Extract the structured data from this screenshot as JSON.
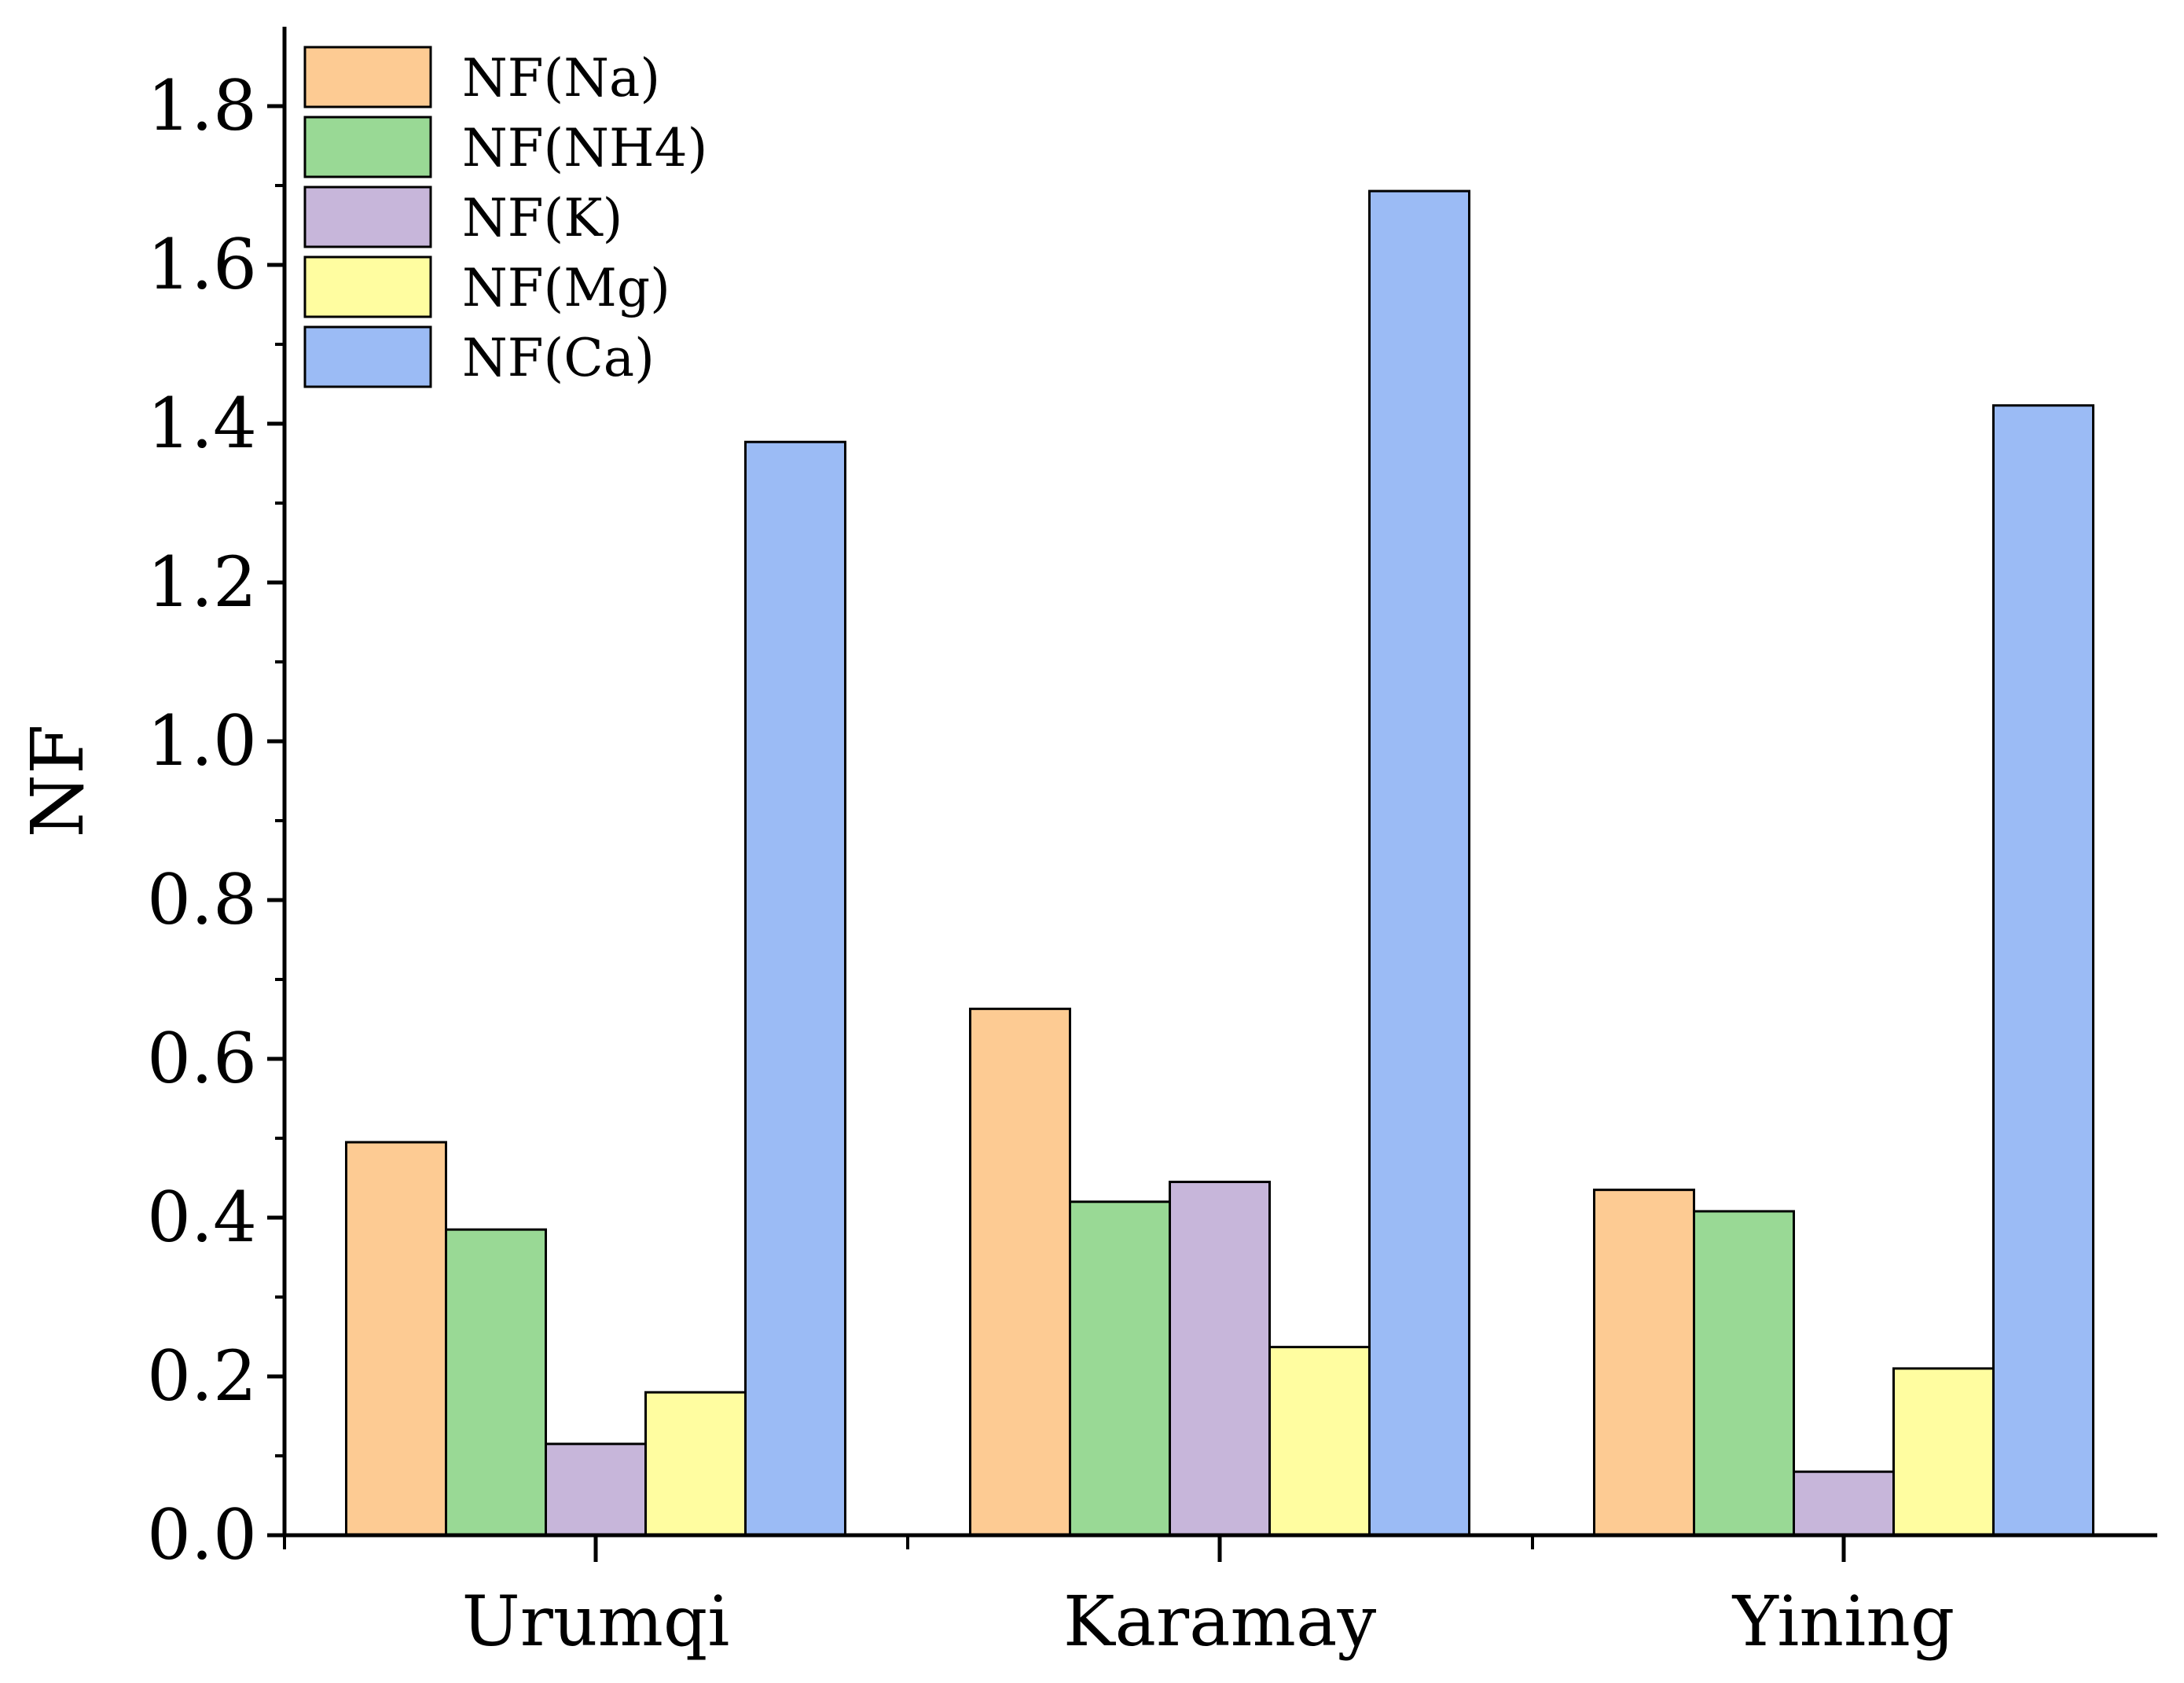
{
  "chart_data": {
    "type": "bar",
    "title": "",
    "xlabel": "",
    "ylabel": "NF",
    "ylim": [
      0,
      1.9
    ],
    "yticks": [
      "0.0",
      "0.2",
      "0.4",
      "0.6",
      "0.8",
      "1.0",
      "1.2",
      "1.4",
      "1.6",
      "1.8"
    ],
    "ytick_values": [
      0,
      0.2,
      0.4,
      0.6,
      0.8,
      1.0,
      1.2,
      1.4,
      1.6,
      1.8
    ],
    "categories": [
      "Urumqi",
      "Karamay",
      "Yining"
    ],
    "legend_position": "top-left",
    "grid": false,
    "series": [
      {
        "name": "NF(Na)",
        "color": "#FDCB93",
        "values": [
          0.495,
          0.663,
          0.435
        ]
      },
      {
        "name": "NF(NH4)",
        "color": "#99D995",
        "values": [
          0.385,
          0.42,
          0.408
        ]
      },
      {
        "name": "NF(K)",
        "color": "#C7B6DA",
        "values": [
          0.115,
          0.445,
          0.08
        ]
      },
      {
        "name": "NF(Mg)",
        "color": "#FFFDA0",
        "values": [
          0.18,
          0.237,
          0.21
        ]
      },
      {
        "name": "NF(Ca)",
        "color": "#9BBBF5",
        "values": [
          1.377,
          1.693,
          1.423
        ]
      }
    ]
  }
}
